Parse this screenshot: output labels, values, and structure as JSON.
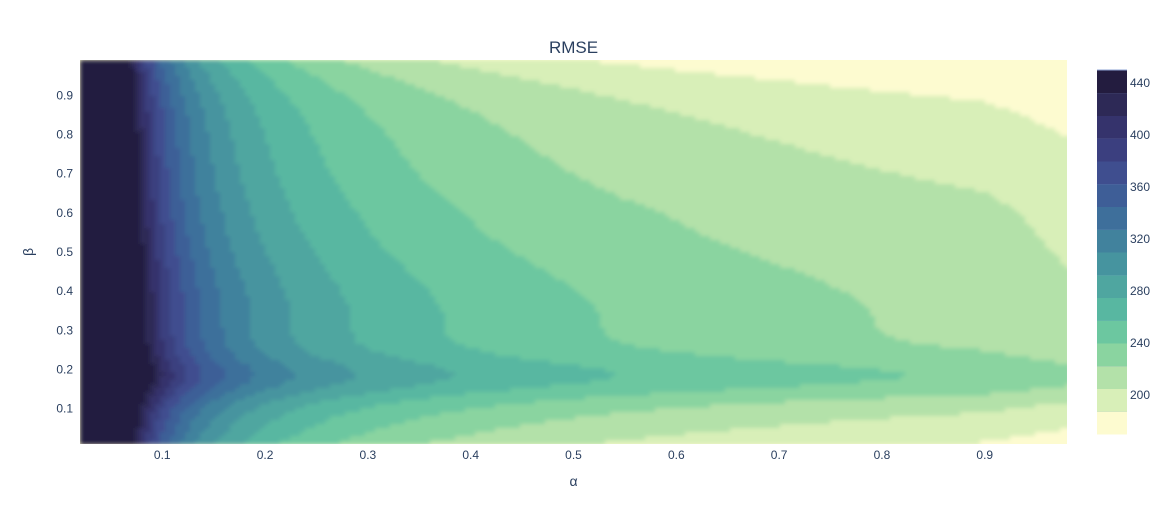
{
  "chart_data": {
    "type": "contour",
    "title": "RMSE",
    "xlabel": "α",
    "ylabel": "β",
    "xlim": [
      0.02,
      0.98
    ],
    "ylim": [
      0.01,
      0.99
    ],
    "x_ticks": [
      0.1,
      0.2,
      0.3,
      0.4,
      0.5,
      0.6,
      0.7,
      0.8,
      0.9
    ],
    "y_ticks": [
      0.1,
      0.2,
      0.3,
      0.4,
      0.5,
      0.6,
      0.7,
      0.8,
      0.9
    ],
    "colorbar": {
      "range": [
        170,
        450
      ],
      "ticks": [
        200,
        240,
        280,
        320,
        360,
        400,
        440
      ]
    },
    "colors": {
      "background": "#fdfbd0",
      "contour_line": "#8fa5d6",
      "colorscale": [
        "#fdfbd0",
        "#d8efb8",
        "#b3e1a9",
        "#8ad4a0",
        "#6cc7a0",
        "#58b7a1",
        "#4fa6a0",
        "#46949f",
        "#41829d",
        "#3e6f9b",
        "#3e5e97",
        "#3f4e8f",
        "#3b3f7f",
        "#35336c",
        "#2d2956",
        "#231c3f"
      ]
    }
  }
}
